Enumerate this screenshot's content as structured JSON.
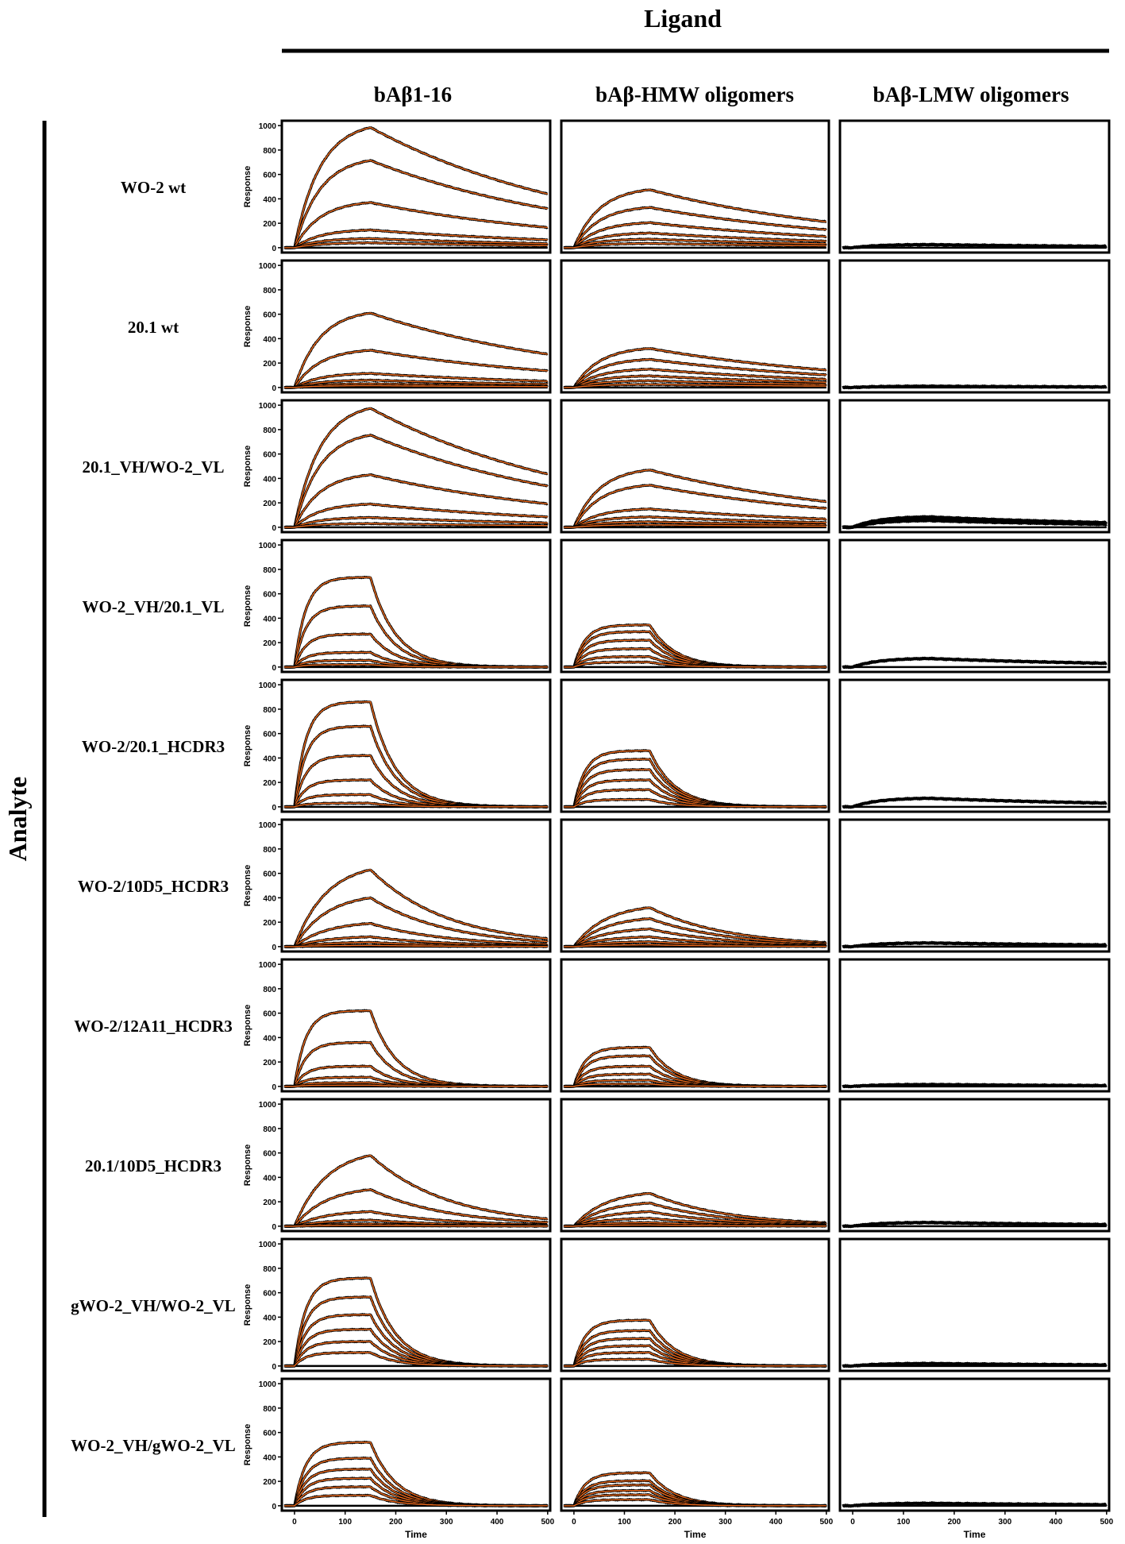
{
  "chart_data": {
    "type": "line",
    "description_kind": "sensorgram grid",
    "ligand_header": "Ligand",
    "analyte_header": "Analyte",
    "x_axis_label": "Time",
    "y_axis_label": "Response",
    "x_ticks": [
      "0",
      "100",
      "200",
      "300",
      "400",
      "500"
    ],
    "y_ticks": [
      "0",
      "200",
      "400",
      "600",
      "800",
      "1000"
    ],
    "xlim": [
      -25,
      505
    ],
    "ylim": [
      -40,
      1040
    ],
    "injection_end_time": 150,
    "grid": false,
    "colors": {
      "measured": "#000000",
      "fit": "#ee6a1c"
    },
    "ligands": [
      "bAβ1-16",
      "bAβ-HMW oligomers",
      "bAβ-LMW oligomers"
    ],
    "analytes": [
      {
        "label": "WO-2 wt",
        "kind": "slow",
        "panels": [
          [
            985,
            715,
            370,
            145,
            75,
            40
          ],
          [
            475,
            330,
            205,
            120,
            70,
            35
          ],
          [
            25
          ]
        ]
      },
      {
        "label": "20.1 wt",
        "kind": "slow",
        "panels": [
          [
            610,
            305,
            115,
            60,
            30,
            15
          ],
          [
            320,
            230,
            150,
            95,
            55,
            25
          ],
          [
            10
          ]
        ]
      },
      {
        "label": "20.1_VH/WO-2_VL",
        "kind": "slow",
        "panels": [
          [
            975,
            755,
            430,
            190,
            80,
            30
          ],
          [
            470,
            345,
            150,
            85,
            45,
            20
          ],
          [
            85,
            70,
            55
          ]
        ]
      },
      {
        "label": "WO-2_VH/20.1_VL",
        "kind": "fast",
        "panels": [
          [
            735,
            500,
            270,
            120,
            55,
            20
          ],
          [
            345,
            290,
            220,
            150,
            85,
            40
          ],
          [
            70
          ]
        ]
      },
      {
        "label": "WO-2/20.1_HCDR3",
        "kind": "fast",
        "panels": [
          [
            860,
            660,
            420,
            220,
            100,
            30
          ],
          [
            460,
            390,
            305,
            220,
            140,
            60
          ],
          [
            70
          ]
        ]
      },
      {
        "label": "WO-2/10D5_HCDR3",
        "kind": "mid",
        "panels": [
          [
            630,
            400,
            190,
            80,
            35,
            10
          ],
          [
            320,
            230,
            145,
            80,
            40,
            15
          ],
          [
            30
          ]
        ]
      },
      {
        "label": "WO-2/12A11_HCDR3",
        "kind": "fast",
        "panels": [
          [
            620,
            360,
            165,
            75,
            30,
            10
          ],
          [
            320,
            250,
            165,
            100,
            50,
            20
          ],
          [
            15
          ]
        ]
      },
      {
        "label": "20.1/10D5_HCDR3",
        "kind": "mid",
        "panels": [
          [
            580,
            300,
            120,
            50,
            20,
            8
          ],
          [
            270,
            190,
            120,
            65,
            30,
            10
          ],
          [
            30
          ]
        ]
      },
      {
        "label": "gWO-2_VH/WO-2_VL",
        "kind": "fast",
        "panels": [
          [
            720,
            565,
            420,
            300,
            200,
            110
          ],
          [
            375,
            290,
            225,
            165,
            110,
            55
          ],
          [
            20
          ]
        ]
      },
      {
        "label": "WO-2_VH/gWO-2_VL",
        "kind": "fast",
        "panels": [
          [
            520,
            390,
            300,
            225,
            155,
            85
          ],
          [
            270,
            205,
            170,
            125,
            90,
            50
          ],
          [
            20
          ]
        ]
      }
    ]
  }
}
